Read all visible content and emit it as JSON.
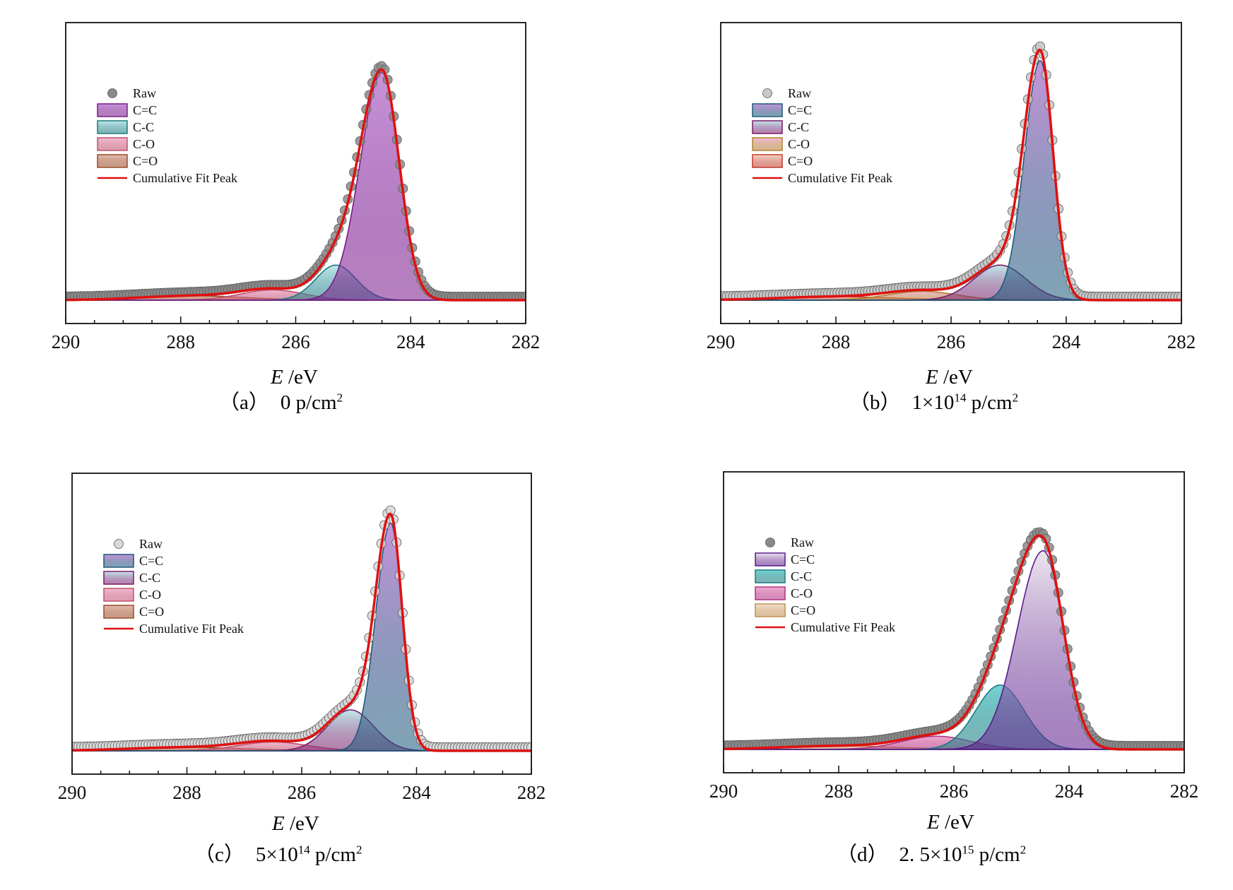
{
  "chart_data": [
    {
      "id": "a",
      "type": "area",
      "caption": {
        "letter": "（a）",
        "dose_main": "0 p/cm",
        "dose_sup": "",
        "unit_sup": "2"
      },
      "xlabel": {
        "symbol": "E",
        "unit": "/eV"
      },
      "xlim": [
        290,
        282
      ],
      "x_ticks": [
        "290",
        "288",
        "286",
        "284",
        "282"
      ],
      "y_ticks_shown": false,
      "legend": {
        "position": "top-left",
        "entries": [
          "Raw",
          "C=C",
          "C-C",
          "C-O",
          "C=O",
          "Cumulative Fit Peak"
        ]
      },
      "raw_marker_color": "#8a8a8a",
      "peaks": [
        {
          "name": "C=C",
          "center": 284.5,
          "height": 0.78,
          "sigma_left": 0.3,
          "sigma_right": 0.38,
          "fill": "#c58fd8",
          "stroke": "#7a1a8a"
        },
        {
          "name": "C-C",
          "center": 285.3,
          "height": 0.12,
          "sigma_left": 0.35,
          "sigma_right": 0.35,
          "fill": "#bfe9ea",
          "stroke": "#1a7a80"
        },
        {
          "name": "C-O",
          "center": 286.4,
          "height": 0.035,
          "sigma_left": 0.55,
          "sigma_right": 0.55,
          "fill": "#f2b8d2",
          "stroke": "#c0506e"
        },
        {
          "name": "C=O",
          "center": 287.8,
          "height": 0.015,
          "sigma_left": 0.9,
          "sigma_right": 0.9,
          "fill": "#e2b9a8",
          "stroke": "#9a4a2a"
        }
      ],
      "raw_offset": 0.02,
      "ylim": [
        -0.08,
        0.95
      ]
    },
    {
      "id": "b",
      "type": "area",
      "caption": {
        "letter": "（b）",
        "dose_main": "1×10",
        "dose_sup": "14",
        "unit": " p/cm",
        "unit_sup": "2"
      },
      "xlabel": {
        "symbol": "E",
        "unit": "/eV"
      },
      "xlim": [
        290,
        282
      ],
      "x_ticks": [
        "290",
        "288",
        "286",
        "284",
        "282"
      ],
      "y_ticks_shown": false,
      "legend": {
        "position": "top-left",
        "entries": [
          "Raw",
          "C=C",
          "C-C",
          "C-O",
          "C=O",
          "Cumulative Fit Peak"
        ]
      },
      "raw_marker_color": "#c8c8c8",
      "peaks": [
        {
          "name": "C=C",
          "center": 284.45,
          "height": 0.82,
          "sigma_left": 0.22,
          "sigma_right": 0.28,
          "fill": "#c58fd8",
          "stroke": "#1a5a7a"
        },
        {
          "name": "C-C",
          "center": 285.15,
          "height": 0.12,
          "sigma_left": 0.45,
          "sigma_right": 0.45,
          "fill": "#bfe9ea",
          "stroke": "#7a1a6a"
        },
        {
          "name": "C-O",
          "center": 286.5,
          "height": 0.03,
          "sigma_left": 0.6,
          "sigma_right": 0.6,
          "fill": "#f2b8d2",
          "stroke": "#b08030"
        },
        {
          "name": "C=O",
          "center": 288.0,
          "height": 0.012,
          "sigma_left": 1.0,
          "sigma_right": 1.0,
          "fill": "#f6d4c9",
          "stroke": "#c03a2a"
        }
      ],
      "raw_offset": 0.02,
      "ylim": [
        -0.08,
        0.95
      ]
    },
    {
      "id": "c",
      "type": "area",
      "caption": {
        "letter": "（c）",
        "dose_main": "5×10",
        "dose_sup": "14",
        "unit": " p/cm",
        "unit_sup": "2"
      },
      "xlabel": {
        "symbol": "E",
        "unit": "/eV"
      },
      "xlim": [
        290,
        282
      ],
      "x_ticks": [
        "290",
        "288",
        "286",
        "284",
        "282"
      ],
      "y_ticks_shown": false,
      "legend": {
        "position": "top-left",
        "entries": [
          "Raw",
          "C=C",
          "C-C",
          "C-O",
          "C=O",
          "Cumulative Fit Peak"
        ]
      },
      "raw_marker_color": "#d8d8d8",
      "peaks": [
        {
          "name": "C=C",
          "center": 284.45,
          "height": 0.78,
          "sigma_left": 0.2,
          "sigma_right": 0.26,
          "fill": "#c58fd8",
          "stroke": "#1a5a7a"
        },
        {
          "name": "C-C",
          "center": 285.15,
          "height": 0.14,
          "sigma_left": 0.4,
          "sigma_right": 0.4,
          "fill": "#bfe9ea",
          "stroke": "#7a1a6a"
        },
        {
          "name": "C-O",
          "center": 286.5,
          "height": 0.03,
          "sigma_left": 0.6,
          "sigma_right": 0.6,
          "fill": "#f2b8d2",
          "stroke": "#c0506e"
        },
        {
          "name": "C=O",
          "center": 288.0,
          "height": 0.012,
          "sigma_left": 1.0,
          "sigma_right": 1.0,
          "fill": "#e2b9a8",
          "stroke": "#9a4a2a"
        }
      ],
      "raw_offset": 0.02,
      "ylim": [
        -0.08,
        0.95
      ]
    },
    {
      "id": "d",
      "type": "area",
      "caption": {
        "letter": "（d）",
        "dose_main": "2. 5×10",
        "dose_sup": "15",
        "unit": " p/cm",
        "unit_sup": "2"
      },
      "xlabel": {
        "symbol": "E",
        "unit": "/eV"
      },
      "xlim": [
        290,
        282
      ],
      "x_ticks": [
        "290",
        "288",
        "286",
        "284",
        "282"
      ],
      "y_ticks_shown": false,
      "legend": {
        "position": "top-left",
        "entries": [
          "Raw",
          "C=C",
          "C-C",
          "C-O",
          "C=O",
          "Cumulative Fit Peak"
        ]
      },
      "raw_marker_color": "#8a8a8a",
      "peaks": [
        {
          "name": "C=C",
          "center": 284.45,
          "height": 0.68,
          "sigma_left": 0.35,
          "sigma_right": 0.45,
          "fill": "#ece4ee",
          "stroke": "#5a1a8a"
        },
        {
          "name": "C-C",
          "center": 285.2,
          "height": 0.22,
          "sigma_left": 0.42,
          "sigma_right": 0.42,
          "fill": "#6fd0d0",
          "stroke": "#1a7a80"
        },
        {
          "name": "C-O",
          "center": 286.3,
          "height": 0.045,
          "sigma_left": 0.6,
          "sigma_right": 0.6,
          "fill": "#f0a8d0",
          "stroke": "#b03080"
        },
        {
          "name": "C=O",
          "center": 288.0,
          "height": 0.012,
          "sigma_left": 1.0,
          "sigma_right": 1.0,
          "fill": "#f2dcc8",
          "stroke": "#c09050"
        }
      ],
      "raw_offset": 0.02,
      "ylim": [
        -0.08,
        0.95
      ]
    }
  ],
  "colors": {
    "cumulative": "#e01010",
    "axis": "#111111"
  },
  "legend_icons": {
    "raw": "circle-marker",
    "peak": "filled-rect-swatch",
    "fit": "line-swatch"
  }
}
